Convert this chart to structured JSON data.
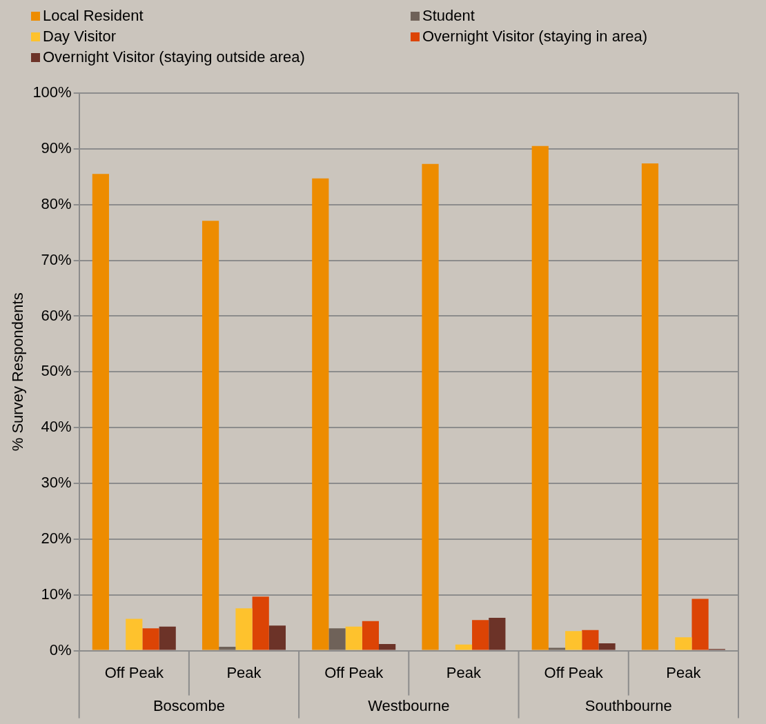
{
  "chart_data": {
    "type": "bar",
    "ylabel": "% Survey Respondents",
    "categories": [
      "Off Peak",
      "Peak",
      "Off Peak",
      "Peak",
      "Off Peak",
      "Peak"
    ],
    "annotations": [
      "Boscombe",
      "Westbourne",
      "Southbourne"
    ],
    "series": [
      {
        "name": "Local Resident",
        "color": "#ed8c00",
        "values": [
          85.5,
          77.1,
          84.7,
          87.3,
          90.5,
          87.4
        ]
      },
      {
        "name": "Student",
        "color": "#6f6259",
        "values": [
          0,
          0.7,
          4.0,
          0,
          0.5,
          null
        ]
      },
      {
        "name": "Day Visitor",
        "color": "#fec22d",
        "values": [
          5.7,
          7.6,
          4.3,
          1.1,
          3.5,
          2.4
        ]
      },
      {
        "name": "Overnight Visitor (staying in area)",
        "color": "#dc4405",
        "values": [
          4.0,
          9.7,
          5.3,
          5.5,
          3.7,
          9.3
        ]
      },
      {
        "name": "Overnight Visitor (staying outside area)",
        "color": "#6c3328",
        "values": [
          4.3,
          4.5,
          1.2,
          5.9,
          1.3,
          0.3
        ]
      }
    ],
    "ylim": [
      0,
      100
    ],
    "yticks": [
      {
        "value": 0,
        "label": "0%"
      },
      {
        "value": 10,
        "label": "10%"
      },
      {
        "value": 20,
        "label": "20%"
      },
      {
        "value": 30,
        "label": "30%"
      },
      {
        "value": 40,
        "label": "40%"
      },
      {
        "value": 50,
        "label": "50%"
      },
      {
        "value": 60,
        "label": "60%"
      },
      {
        "value": 70,
        "label": "70%"
      },
      {
        "value": 80,
        "label": "80%"
      },
      {
        "value": 90,
        "label": "90%"
      },
      {
        "value": 100,
        "label": "100%"
      }
    ],
    "grid": "y",
    "legend": "top"
  }
}
